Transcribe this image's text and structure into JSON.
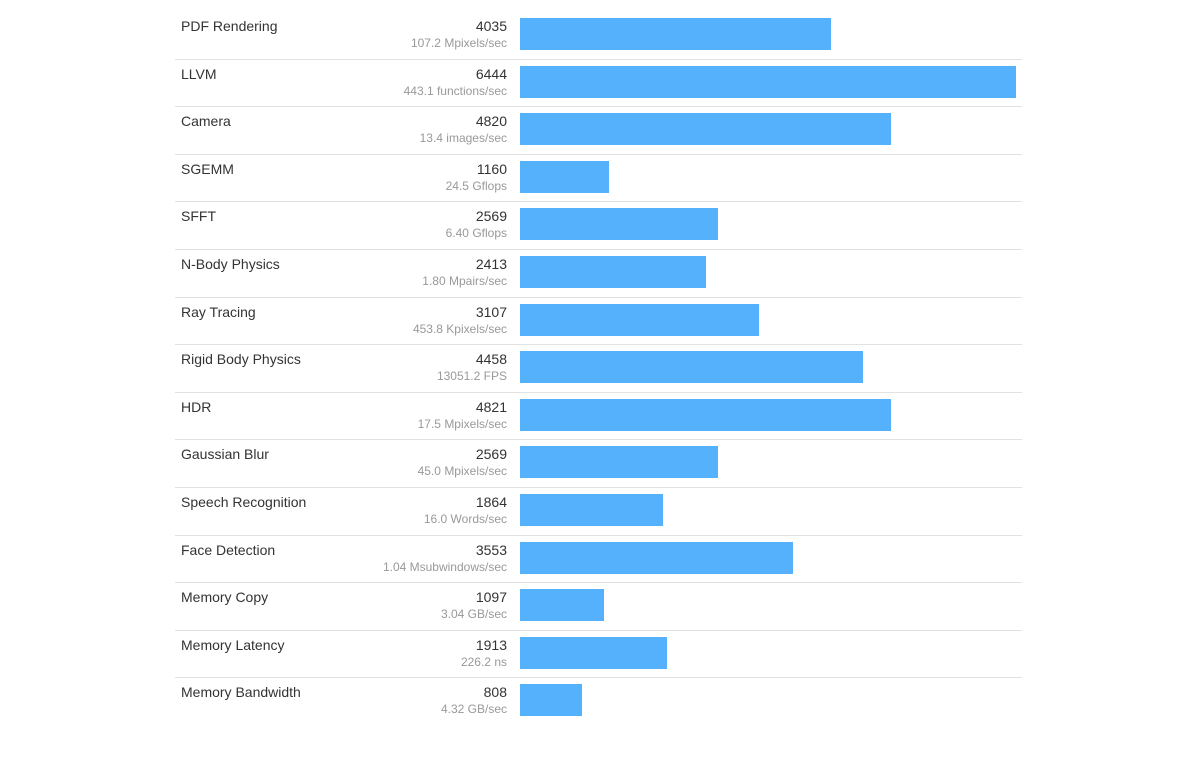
{
  "colors": {
    "bar": "#55b1fc",
    "divider": "#e2e2e2",
    "label_text": "#333333",
    "rate_text": "#999999"
  },
  "chart_max_score": 6444,
  "benchmarks": [
    {
      "name": "PDF Rendering",
      "score": "4035",
      "rate": "107.2 Mpixels/sec"
    },
    {
      "name": "LLVM",
      "score": "6444",
      "rate": "443.1 functions/sec"
    },
    {
      "name": "Camera",
      "score": "4820",
      "rate": "13.4 images/sec"
    },
    {
      "name": "SGEMM",
      "score": "1160",
      "rate": "24.5 Gflops"
    },
    {
      "name": "SFFT",
      "score": "2569",
      "rate": "6.40 Gflops"
    },
    {
      "name": "N-Body Physics",
      "score": "2413",
      "rate": "1.80 Mpairs/sec"
    },
    {
      "name": "Ray Tracing",
      "score": "3107",
      "rate": "453.8 Kpixels/sec"
    },
    {
      "name": "Rigid Body Physics",
      "score": "4458",
      "rate": "13051.2 FPS"
    },
    {
      "name": "HDR",
      "score": "4821",
      "rate": "17.5 Mpixels/sec"
    },
    {
      "name": "Gaussian Blur",
      "score": "2569",
      "rate": "45.0 Mpixels/sec"
    },
    {
      "name": "Speech Recognition",
      "score": "1864",
      "rate": "16.0 Words/sec"
    },
    {
      "name": "Face Detection",
      "score": "3553",
      "rate": "1.04 Msubwindows/sec"
    },
    {
      "name": "Memory Copy",
      "score": "1097",
      "rate": "3.04 GB/sec"
    },
    {
      "name": "Memory Latency",
      "score": "1913",
      "rate": "226.2 ns"
    },
    {
      "name": "Memory Bandwidth",
      "score": "808",
      "rate": "4.32 GB/sec"
    }
  ]
}
